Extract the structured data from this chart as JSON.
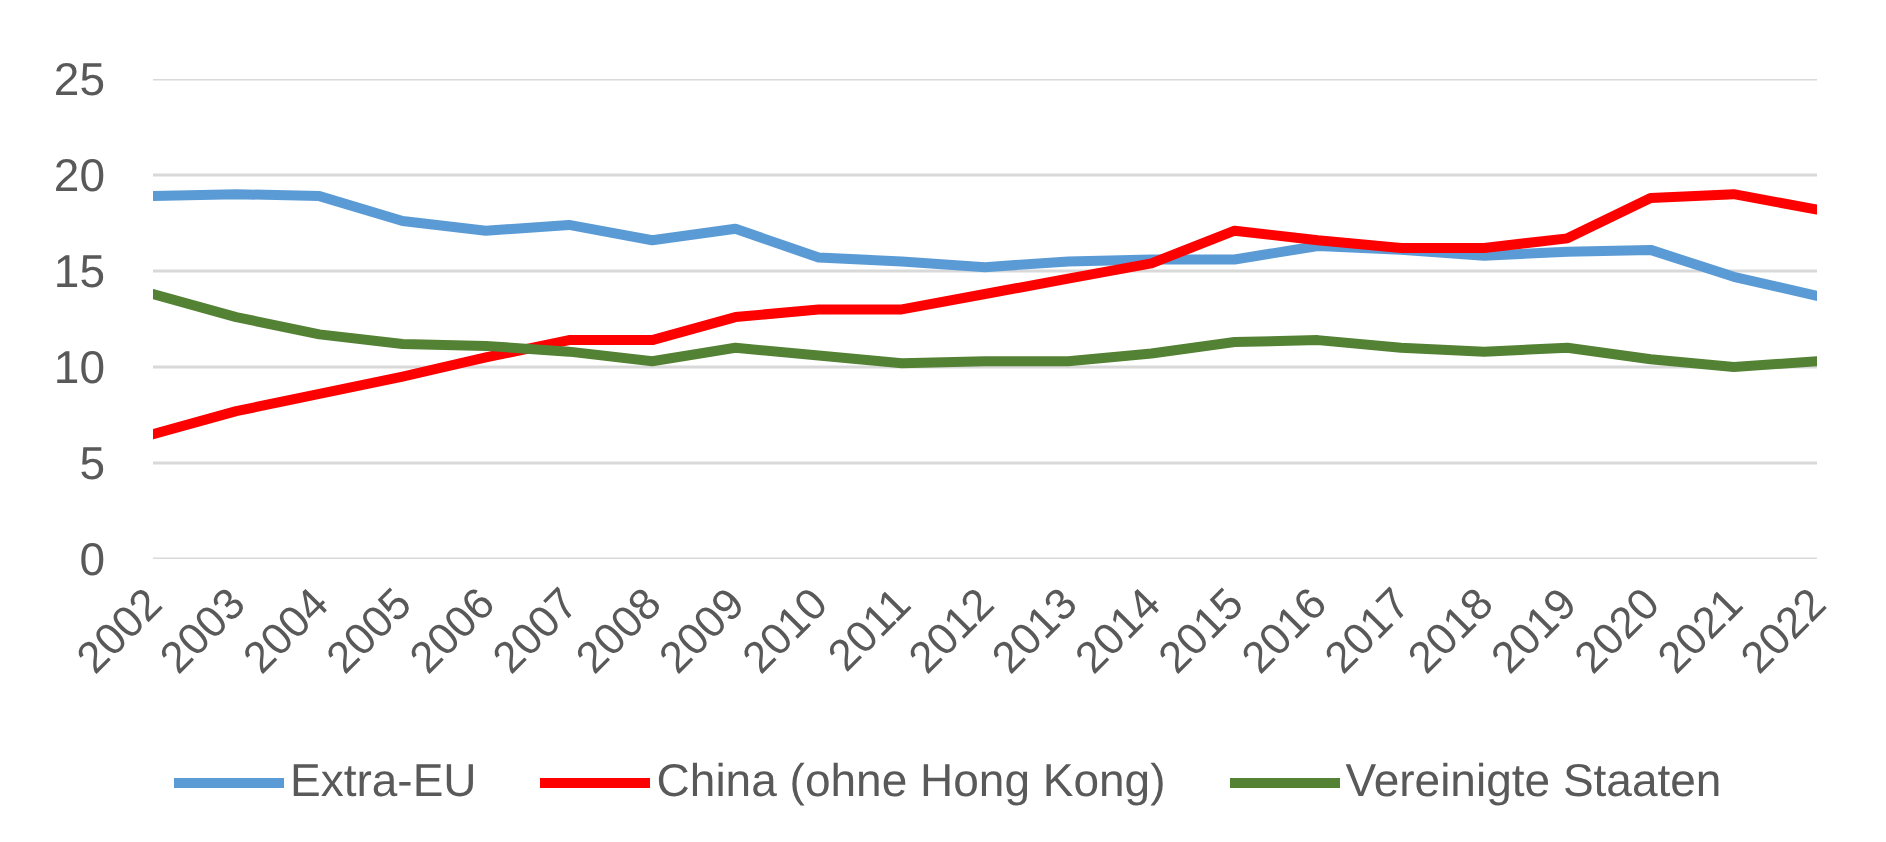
{
  "chart_data": {
    "type": "line",
    "categories": [
      "2002",
      "2003",
      "2004",
      "2005",
      "2006",
      "2007",
      "2008",
      "2009",
      "2010",
      "2011",
      "2012",
      "2013",
      "2014",
      "2015",
      "2016",
      "2017",
      "2018",
      "2019",
      "2020",
      "2021",
      "2022"
    ],
    "ylim": [
      0,
      25
    ],
    "yticks": [
      0,
      5,
      10,
      15,
      20,
      25
    ],
    "grid": "y",
    "legend": "bottom",
    "marker": "none",
    "line_style": "solid",
    "series": [
      {
        "name": "Extra-EU",
        "color": "#5b9bd5",
        "values": [
          18.9,
          19.0,
          18.9,
          17.6,
          17.1,
          17.4,
          16.6,
          17.2,
          15.7,
          15.5,
          15.2,
          15.5,
          15.6,
          15.6,
          16.3,
          16.1,
          15.8,
          16.0,
          16.1,
          14.7,
          13.7
        ]
      },
      {
        "name": "China (ohne Hong Kong)",
        "color": "#ff0000",
        "values": [
          6.5,
          7.7,
          8.6,
          9.5,
          10.5,
          11.4,
          11.4,
          12.6,
          13.0,
          13.0,
          13.8,
          14.6,
          15.4,
          17.1,
          16.6,
          16.2,
          16.2,
          16.7,
          18.8,
          19.0,
          18.2
        ]
      },
      {
        "name": "Vereinigte Staaten",
        "color": "#548235",
        "values": [
          13.8,
          12.6,
          11.7,
          11.2,
          11.1,
          10.8,
          10.3,
          11.0,
          10.6,
          10.2,
          10.3,
          10.3,
          10.7,
          11.3,
          11.4,
          11.0,
          10.8,
          11.0,
          10.4,
          10.0,
          10.3
        ]
      }
    ]
  }
}
